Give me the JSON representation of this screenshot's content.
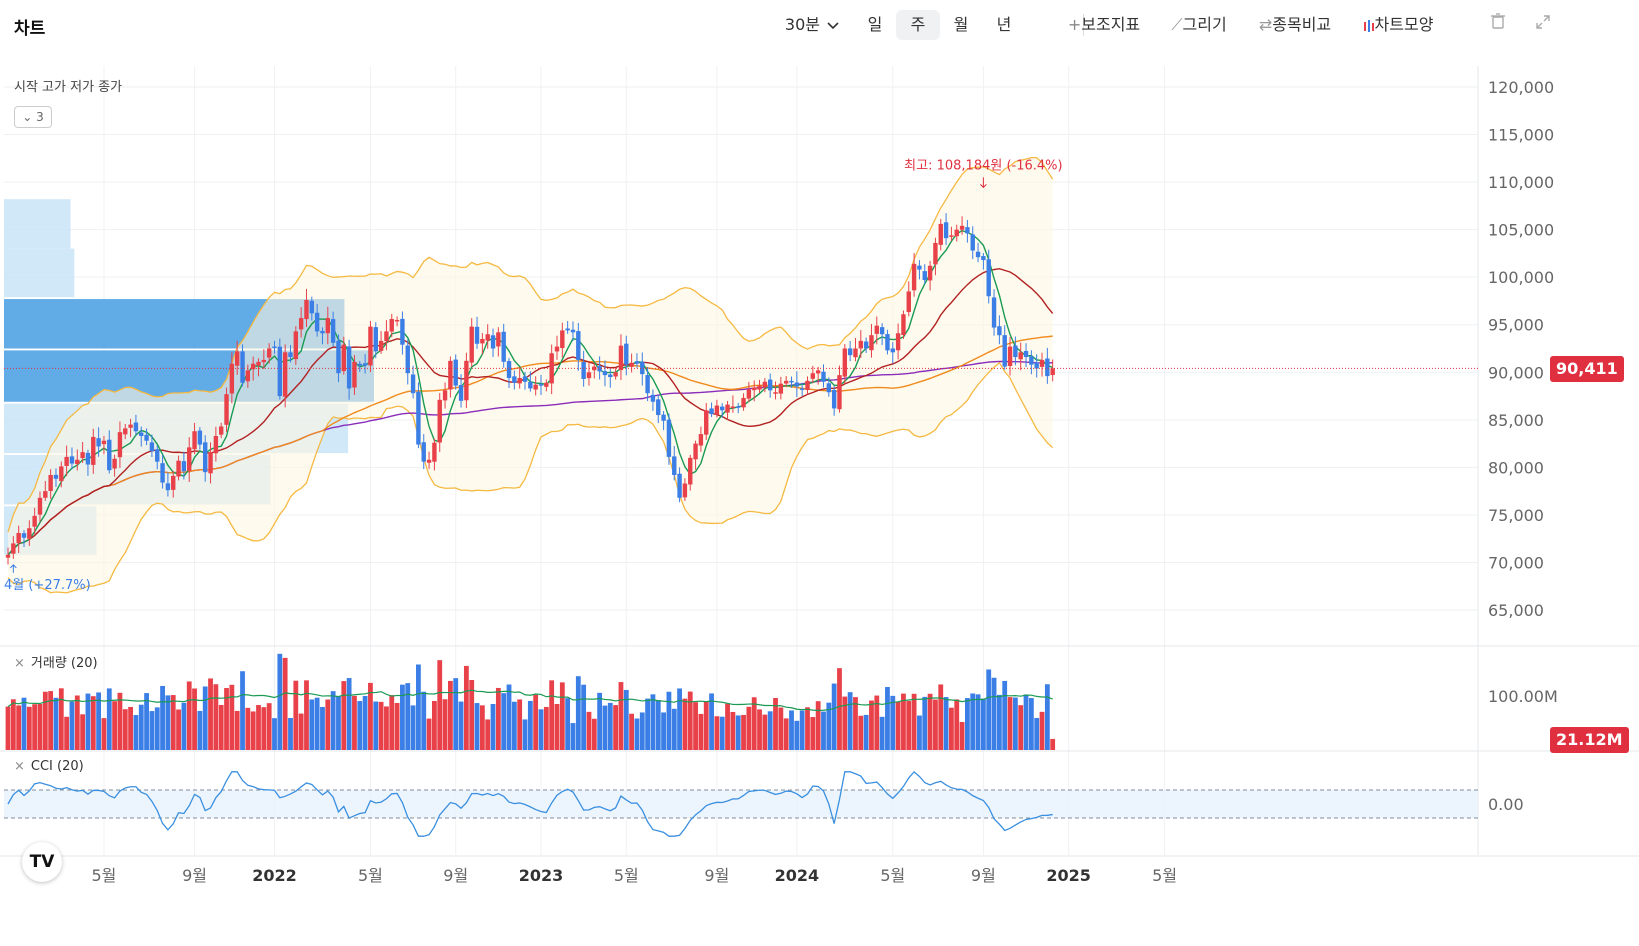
{
  "header": {
    "title": "차트",
    "interval": "30분",
    "periods": [
      "일",
      "주",
      "월",
      "년"
    ],
    "active_period": "주",
    "indicator_label": "보조지표",
    "draw_label": "그리기",
    "compare_label": "종목비교",
    "style_label": "차트모양",
    "icons": {
      "dropdown": "chevron-down-icon",
      "indicator": "plus-icon",
      "draw": "pencil-icon",
      "compare": "swap-icon",
      "style": "candle-icon",
      "delete": "trash-icon",
      "fullscreen": "expand-icon"
    }
  },
  "legend": {
    "ohlc_text": "시작 고가 저가 종가",
    "collapse_count": "3"
  },
  "volume_panel": {
    "label": "거래량 (20)",
    "axis_label": "100.00M",
    "current_badge": "21.12M"
  },
  "cci_panel": {
    "label": "CCI (20)",
    "axis_label": "0.00"
  },
  "logo_text": "TV",
  "colors": {
    "up": "#e8414a",
    "down": "#3a7ee6",
    "ma5": "#1a9a52",
    "ma20": "#b22222",
    "ma60": "#f08a1c",
    "ma120": "#8a2dba",
    "bollinger": "#f5b942",
    "profile": "#59a6e6",
    "profile_light": "#c6e2f7",
    "cci": "#3a8fe0",
    "price_line": "#e0303f"
  },
  "chart_data": {
    "type": "candlestick",
    "title": "",
    "interval": "weekly",
    "ylim": [
      60000,
      122000
    ],
    "y_ticks": [
      120000,
      115000,
      110000,
      105000,
      100000,
      95000,
      90000,
      85000,
      80000,
      75000,
      70000,
      65000
    ],
    "y_tick_labels": [
      "120,000",
      "115,000",
      "110,000",
      "105,000",
      "100,000",
      "95,000",
      "90,000",
      "85,000",
      "80,000",
      "75,000",
      "70,000",
      "65,000"
    ],
    "x_tick_labels": [
      "5월",
      "9월",
      "2022",
      "5월",
      "9월",
      "2023",
      "5월",
      "9월",
      "2024",
      "5월",
      "9월",
      "2025",
      "5월"
    ],
    "x_tick_weeks": [
      18,
      35,
      50,
      68,
      84,
      100,
      116,
      133,
      148,
      166,
      183,
      199,
      217
    ],
    "current_price": 90411,
    "current_price_label": "90,411",
    "high_annotation": {
      "text": "최고: 108,184원 (-16.4%)",
      "value": 108184,
      "week": 183
    },
    "low_annotation": {
      "text": "4월 (+27.7%)",
      "value": 70800,
      "week": 1
    },
    "close": [
      70800,
      72000,
      73100,
      72600,
      73600,
      74900,
      76800,
      77500,
      79200,
      78800,
      80100,
      81100,
      80400,
      80800,
      81600,
      80300,
      83200,
      82200,
      82800,
      79700,
      80900,
      83700,
      84100,
      84500,
      83800,
      83300,
      82800,
      81700,
      80600,
      78400,
      77600,
      79100,
      80700,
      79600,
      82100,
      83800,
      82400,
      79500,
      81600,
      83300,
      84300,
      87700,
      90900,
      92200,
      88900,
      90200,
      90900,
      91100,
      91300,
      92500,
      92700,
      87500,
      92100,
      91600,
      94300,
      95700,
      97600,
      96200,
      94300,
      94100,
      95700,
      93100,
      89900,
      92900,
      88300,
      91100,
      90700,
      90700,
      94800,
      92200,
      93300,
      94300,
      95600,
      95500,
      92900,
      89900,
      87800,
      82400,
      80600,
      80800,
      82600,
      87100,
      88100,
      91200,
      88600,
      87000,
      91200,
      94800,
      93000,
      93500,
      94000,
      92500,
      94200,
      91100,
      89400,
      88900,
      89400,
      89000,
      88300,
      88700,
      88700,
      88900,
      92000,
      92700,
      94400,
      94400,
      94200,
      91300,
      89300,
      90000,
      90600,
      90100,
      89700,
      89500,
      90000,
      92800,
      90800,
      91000,
      90900,
      89800,
      87800,
      86900,
      85500,
      84900,
      81100,
      79200,
      76800,
      78300,
      81000,
      82500,
      83500,
      86000,
      85600,
      86500,
      86000,
      86600,
      86400,
      86300,
      87300,
      88200,
      88400,
      88600,
      89000,
      88100,
      87900,
      88800,
      89100,
      89000,
      88500,
      88200,
      89100,
      89900,
      90200,
      89000,
      87900,
      86200,
      89700,
      92500,
      91800,
      92500,
      93300,
      92500,
      93900,
      94900,
      94000,
      92300,
      92100,
      94100,
      96100,
      98500,
      101400,
      100800,
      99700,
      101200,
      103600,
      105600,
      104100,
      104400,
      105000,
      105400,
      104600,
      102800,
      102100,
      101800,
      98000,
      94700,
      93900,
      90600,
      92700,
      91600,
      92100,
      91600,
      90800,
      90400,
      91300,
      89600,
      90400
    ],
    "y_ticks_visible": true,
    "moving_averages": [
      {
        "name": "MA5",
        "period": 5,
        "color": "#1a9a52"
      },
      {
        "name": "MA20",
        "period": 20,
        "color": "#b22222"
      },
      {
        "name": "MA60",
        "period": 60,
        "color": "#f08a1c"
      },
      {
        "name": "MA120",
        "period": 120,
        "color": "#8a2dba"
      }
    ],
    "bollinger": {
      "period": 20,
      "k": 2
    },
    "volume_profile": [
      {
        "price_low": 103000,
        "price_high": 108200,
        "strength": 0.18,
        "highlight": false
      },
      {
        "price_low": 97900,
        "price_high": 103000,
        "strength": 0.19,
        "highlight": false
      },
      {
        "price_low": 92500,
        "price_high": 97700,
        "strength": 0.92,
        "highlight": true
      },
      {
        "price_low": 86900,
        "price_high": 92300,
        "strength": 1.0,
        "highlight": true
      },
      {
        "price_low": 81500,
        "price_high": 86700,
        "strength": 0.93,
        "highlight": false
      },
      {
        "price_low": 76100,
        "price_high": 81300,
        "strength": 0.72,
        "highlight": false
      },
      {
        "price_low": 70800,
        "price_high": 75900,
        "strength": 0.25,
        "highlight": false
      }
    ],
    "volume": {
      "ylim": [
        0,
        160
      ],
      "unit": "M",
      "avg_period": 20,
      "current": 21.12
    },
    "cci": {
      "period": 20,
      "upper": 100,
      "lower": -100
    }
  }
}
